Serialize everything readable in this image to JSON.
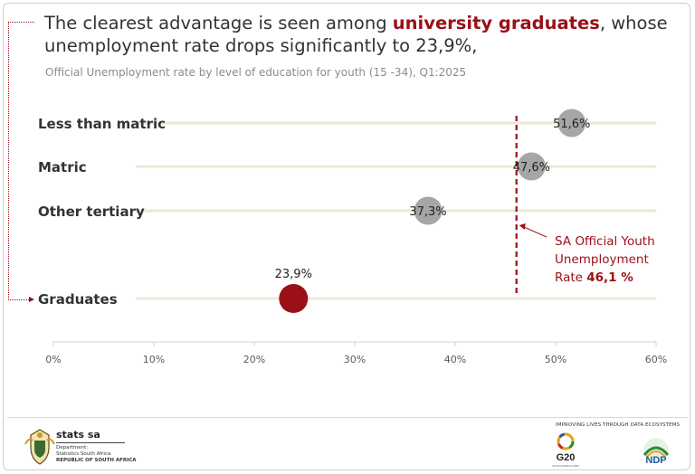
{
  "headline": {
    "prefix": "The clearest advantage is seen among ",
    "highlight": "university graduates",
    "suffix": ", whose unemployment rate drops significantly to 23,9%,"
  },
  "colors": {
    "accent": "#9a1016",
    "dot_gray": "#a6a6a6",
    "track": "#ece8d8",
    "axis_text": "#595959"
  },
  "chart_data": {
    "type": "scatter",
    "title": "Official Unemployment rate by level of education for youth (15 -34), Q1:2025",
    "categories": [
      "Less than matric",
      "Matric",
      "Other tertiary",
      "Graduates"
    ],
    "values": [
      51.6,
      47.6,
      37.3,
      23.9
    ],
    "value_labels": [
      "51,6%",
      "47,6%",
      "37,3%",
      "23,9%"
    ],
    "highlight_category": "Graduates",
    "xlim": [
      0,
      60
    ],
    "x_ticks": [
      0,
      10,
      20,
      30,
      40,
      50,
      60
    ],
    "x_tick_labels": [
      "0%",
      "10%",
      "20%",
      "30%",
      "40%",
      "50%",
      "60%"
    ],
    "reference_line": {
      "value": 46.1,
      "label_lines": [
        "SA Official Youth",
        "Unemployment"
      ],
      "label_prefix": "Rate ",
      "label_value": "46,1 %"
    }
  },
  "footer": {
    "org_name": "stats sa",
    "dept_lines": [
      "Department:",
      "Statistics South Africa"
    ],
    "republic": "REPUBLIC OF SOUTH AFRICA",
    "tagline": "IMPROVING LIVES THROUGH DATA ECOSYSTEMS",
    "g20_label": "G20",
    "g20_sub": "SOUTH AFRICA 2025",
    "ndp_label": "NDP"
  }
}
